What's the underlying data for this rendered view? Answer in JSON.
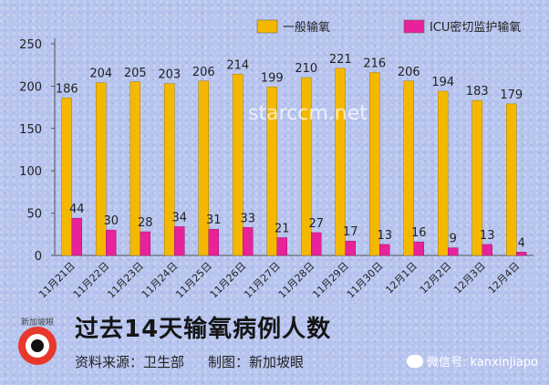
{
  "chart_data": {
    "type": "bar",
    "categories": [
      "11月21日",
      "11月22日",
      "11月23日",
      "11月24日",
      "11月25日",
      "11月26日",
      "11月27日",
      "11月28日",
      "11月29日",
      "11月30日",
      "12月1日",
      "12月2日",
      "12月3日",
      "12月4日"
    ],
    "series": [
      {
        "name": "一般输氧",
        "values": [
          186,
          204,
          205,
          203,
          206,
          214,
          199,
          210,
          221,
          216,
          206,
          194,
          183,
          179
        ],
        "color": "#f5b800"
      },
      {
        "name": "ICU密切监护输氧",
        "values": [
          44,
          30,
          28,
          34,
          31,
          33,
          21,
          27,
          17,
          13,
          16,
          9,
          13,
          4
        ],
        "color": "#e8229a"
      }
    ],
    "yticks": [
      0,
      50,
      100,
      150,
      200,
      250
    ],
    "ylim": [
      0,
      250
    ],
    "grid": false,
    "legend_position": "top"
  },
  "title": "过去14天输氧病例人数",
  "source": "资料来源：卫生部",
  "credit": "制图：新加坡眼",
  "watermark": "starccm.net",
  "wechat": "微信号: kanxinjiapo",
  "logo_text": "新加坡眼"
}
